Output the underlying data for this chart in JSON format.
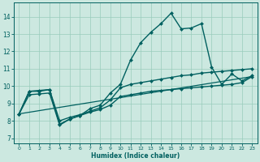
{
  "xlabel": "Humidex (Indice chaleur)",
  "bg_color": "#cce8e0",
  "grid_color": "#99ccbb",
  "line_color": "#006060",
  "xlim": [
    -0.5,
    23.5
  ],
  "ylim": [
    6.7,
    14.8
  ],
  "yticks": [
    7,
    8,
    9,
    10,
    11,
    12,
    13,
    14
  ],
  "xticks": [
    0,
    1,
    2,
    3,
    4,
    5,
    6,
    7,
    8,
    9,
    10,
    11,
    12,
    13,
    14,
    15,
    16,
    17,
    18,
    19,
    20,
    21,
    22,
    23
  ],
  "lines": [
    {
      "x": [
        0,
        1,
        2,
        3,
        4,
        5,
        6,
        7,
        8,
        9,
        10,
        11,
        12,
        13,
        14,
        15,
        16,
        17,
        18,
        19,
        20,
        21,
        22,
        23
      ],
      "y": [
        8.4,
        9.7,
        9.7,
        9.8,
        7.8,
        8.1,
        8.3,
        8.7,
        8.9,
        9.6,
        10.1,
        11.5,
        12.5,
        13.1,
        13.6,
        14.2,
        13.3,
        13.35,
        13.6,
        11.1,
        10.1,
        10.7,
        10.3,
        10.6
      ],
      "marker": "D",
      "marker_size": 2.0,
      "linewidth": 1.0
    },
    {
      "x": [
        0,
        1,
        2,
        3,
        4,
        5,
        6,
        7,
        8,
        9,
        10,
        11,
        12,
        13,
        14,
        15,
        16,
        17,
        18,
        19,
        20,
        21,
        22,
        23
      ],
      "y": [
        8.4,
        9.7,
        9.75,
        9.8,
        8.0,
        8.2,
        8.35,
        8.55,
        8.75,
        9.2,
        9.9,
        10.1,
        10.2,
        10.3,
        10.4,
        10.5,
        10.6,
        10.65,
        10.75,
        10.8,
        10.85,
        10.9,
        10.95,
        11.0
      ],
      "marker": "D",
      "marker_size": 2.0,
      "linewidth": 1.0
    },
    {
      "x": [
        0,
        1,
        2,
        3,
        4,
        5,
        6,
        7,
        8,
        9,
        10,
        11,
        12,
        13,
        14,
        15,
        16,
        17,
        18,
        19,
        20,
        21,
        22,
        23
      ],
      "y": [
        8.4,
        9.5,
        9.55,
        9.6,
        7.75,
        8.1,
        8.3,
        8.5,
        8.65,
        8.9,
        9.4,
        9.5,
        9.6,
        9.7,
        9.75,
        9.8,
        9.85,
        9.9,
        9.95,
        10.0,
        10.05,
        10.1,
        10.2,
        10.55
      ],
      "marker": "D",
      "marker_size": 2.0,
      "linewidth": 1.0
    },
    {
      "x": [
        0,
        23
      ],
      "y": [
        8.4,
        10.55
      ],
      "marker": null,
      "marker_size": 0,
      "linewidth": 0.9
    }
  ]
}
